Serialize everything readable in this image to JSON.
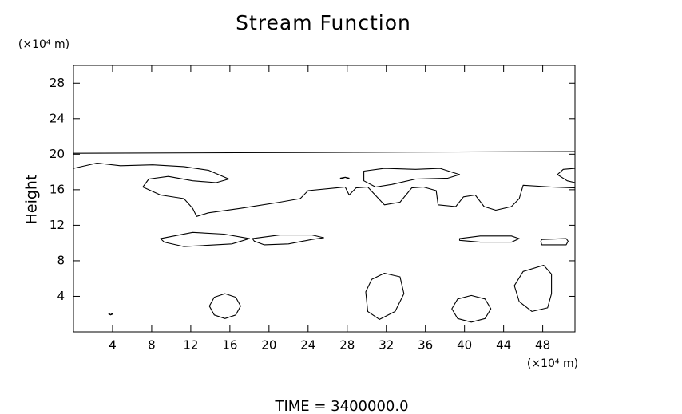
{
  "chart_data": {
    "type": "contour",
    "title": "Stream Function",
    "y_unit": "(×10⁴ m)",
    "ylabel": "Height",
    "x_unit": "(×10⁴ m)",
    "footer": "TIME = 3400000.0",
    "xlim": [
      0,
      51.3
    ],
    "ylim": [
      0,
      30
    ],
    "xticks": [
      4,
      8,
      12,
      16,
      20,
      24,
      28,
      32,
      36,
      40,
      44,
      48
    ],
    "yticks": [
      4,
      8,
      12,
      16,
      20,
      24,
      28
    ],
    "color": "#000000",
    "series": [
      {
        "closed": false,
        "x": [
          0,
          51.3
        ],
        "y": [
          20.1,
          20.3
        ]
      },
      {
        "closed": false,
        "x": [
          0,
          2.4,
          4.8,
          8.1,
          11.3,
          13.8,
          15.9,
          14.6,
          12.2,
          9.7,
          7.7,
          7.1,
          8.9,
          11.3,
          12.2,
          12.6,
          13.8,
          17.1,
          21.1,
          23.2,
          24.0,
          26.9,
          27.8,
          28.2,
          28.9,
          30.1,
          31.8,
          33.4,
          34.6,
          35.8,
          37.1,
          37.3,
          39.1,
          39.9,
          41.1,
          42.0,
          43.2,
          44.8,
          45.6,
          46.0,
          48.9,
          51.3
        ],
        "y": [
          18.4,
          19.0,
          18.7,
          18.8,
          18.6,
          18.2,
          17.2,
          16.8,
          17.0,
          17.5,
          17.2,
          16.3,
          15.4,
          15.0,
          13.9,
          13.0,
          13.4,
          13.9,
          14.6,
          15.0,
          15.9,
          16.2,
          16.3,
          15.4,
          16.2,
          16.3,
          14.3,
          14.6,
          16.2,
          16.3,
          15.9,
          14.3,
          14.1,
          15.2,
          15.4,
          14.1,
          13.7,
          14.1,
          15.0,
          16.5,
          16.3,
          16.2
        ]
      },
      {
        "closed": true,
        "x": [
          29.7,
          31.8,
          35.0,
          37.5,
          39.5,
          38.3,
          35.0,
          32.6,
          30.9,
          29.7
        ],
        "y": [
          18.1,
          18.4,
          18.3,
          18.4,
          17.7,
          17.3,
          17.2,
          16.6,
          16.3,
          17.0
        ]
      },
      {
        "closed": false,
        "x": [
          51.3,
          50.1,
          49.5,
          50.5,
          51.3
        ],
        "y": [
          18.4,
          18.3,
          17.7,
          17.0,
          16.8
        ]
      },
      {
        "closed": true,
        "x": [
          27.3,
          27.8,
          28.2,
          27.8
        ],
        "y": [
          17.3,
          17.4,
          17.3,
          17.2
        ]
      },
      {
        "closed": true,
        "x": [
          8.9,
          12.2,
          15.4,
          18.0,
          16.2,
          13.0,
          11.3,
          9.3
        ],
        "y": [
          10.5,
          11.2,
          11.0,
          10.5,
          9.9,
          9.7,
          9.6,
          10.1
        ]
      },
      {
        "closed": true,
        "x": [
          18.3,
          21.1,
          24.4,
          25.6,
          24.4,
          22.0,
          19.5,
          18.5
        ],
        "y": [
          10.5,
          10.9,
          10.9,
          10.6,
          10.4,
          9.9,
          9.8,
          10.2
        ]
      },
      {
        "closed": true,
        "x": [
          39.5,
          41.6,
          44.8,
          45.6,
          44.8,
          41.6,
          39.5
        ],
        "y": [
          10.5,
          10.8,
          10.8,
          10.5,
          10.1,
          10.1,
          10.3
        ]
      },
      {
        "closed": true,
        "x": [
          47.9,
          50.4,
          50.6,
          50.4,
          47.9,
          47.8
        ],
        "y": [
          10.4,
          10.5,
          10.2,
          9.8,
          9.8,
          10.2
        ]
      },
      {
        "closed": true,
        "x": [
          17.1,
          16.6,
          15.5,
          14.4,
          13.9,
          14.4,
          15.5,
          16.6
        ],
        "y": [
          2.9,
          3.9,
          4.3,
          3.9,
          2.9,
          1.9,
          1.5,
          1.9
        ]
      },
      {
        "closed": true,
        "x": [
          31.8,
          33.4,
          33.8,
          32.9,
          31.3,
          30.1,
          29.9,
          30.5
        ],
        "y": [
          6.6,
          6.2,
          4.3,
          2.3,
          1.4,
          2.3,
          4.5,
          5.9
        ]
      },
      {
        "closed": true,
        "x": [
          42.7,
          42.1,
          40.7,
          39.3,
          38.7,
          39.3,
          40.7,
          42.1
        ],
        "y": [
          2.6,
          3.7,
          4.1,
          3.7,
          2.6,
          1.5,
          1.1,
          1.5
        ]
      },
      {
        "closed": true,
        "x": [
          48.1,
          48.9,
          48.9,
          48.5,
          46.9,
          45.6,
          45.1,
          46.0
        ],
        "y": [
          7.5,
          6.5,
          4.3,
          2.7,
          2.3,
          3.4,
          5.2,
          6.8
        ]
      },
      {
        "closed": true,
        "x": [
          4.0,
          3.8,
          3.6,
          3.8
        ],
        "y": [
          2.0,
          2.1,
          2.0,
          1.9
        ]
      }
    ]
  }
}
